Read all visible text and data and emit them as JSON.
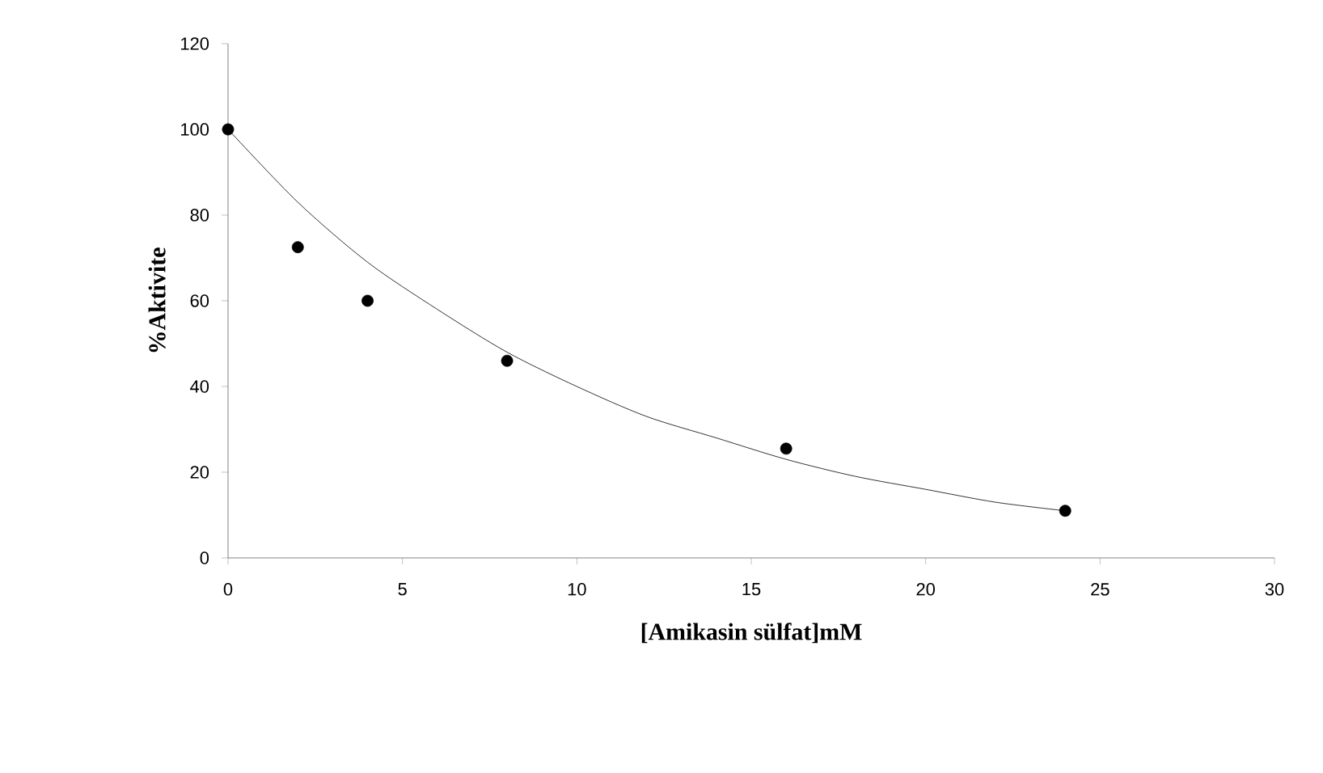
{
  "chart_data": {
    "type": "scatter",
    "xlabel": "[Amikasin sülfat]mM",
    "ylabel": "%Aktivite",
    "xlim": [
      0,
      30
    ],
    "ylim": [
      0,
      120
    ],
    "xticks": [
      0,
      5,
      10,
      15,
      20,
      25,
      30
    ],
    "yticks": [
      0,
      20,
      40,
      60,
      80,
      100,
      120
    ],
    "grid": false,
    "series": [
      {
        "color": "#000000",
        "x": [
          0,
          2,
          4,
          8,
          16,
          24
        ],
        "values": [
          100,
          72.5,
          60,
          46,
          25.5,
          11
        ]
      },
      {
        "type": "line",
        "color": "#000000",
        "x": [
          0,
          2,
          4,
          6,
          8,
          10,
          12,
          14,
          16,
          18,
          20,
          22,
          24
        ],
        "values": [
          100,
          83,
          69,
          58,
          48,
          40,
          33,
          28,
          23,
          19,
          16,
          13,
          11
        ]
      }
    ]
  }
}
